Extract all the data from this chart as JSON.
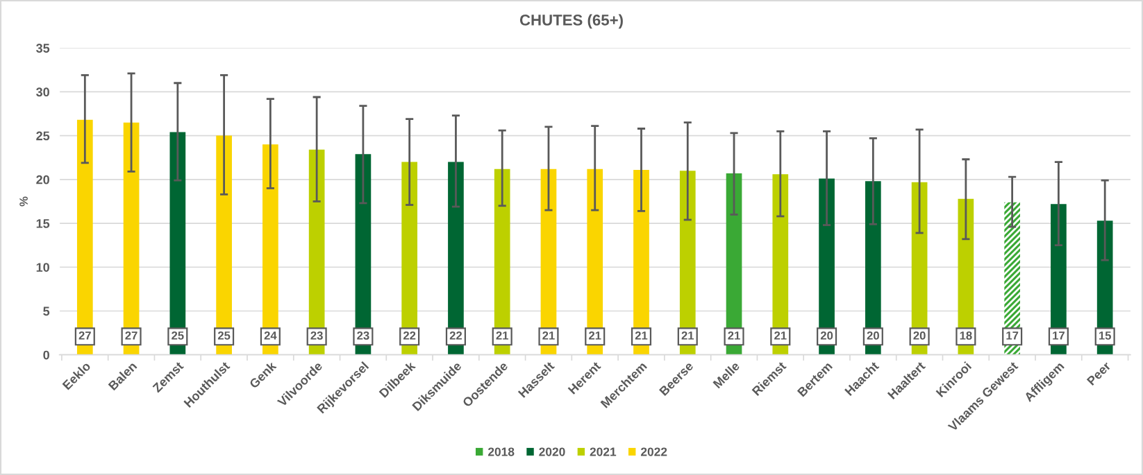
{
  "chart_data": {
    "type": "bar",
    "title": "CHUTES (65+)",
    "ylabel": "%",
    "categories": [
      "Eeklo",
      "Balen",
      "Zemst",
      "Houthulst",
      "Genk",
      "Vilvoorde",
      "Rijkevorsel",
      "Dilbeek",
      "Diksmuide",
      "Oostende",
      "Hasselt",
      "Herent",
      "Merchtem",
      "Beerse",
      "Melle",
      "Riemst",
      "Bertem",
      "Haacht",
      "Haaltert",
      "Kinrooi",
      "Vlaams Gewest",
      "Affligem",
      "Peer"
    ],
    "stacked": true,
    "series": [
      {
        "name": "2018",
        "color": "#3aa935",
        "values": [
          null,
          null,
          null,
          null,
          null,
          null,
          null,
          null,
          null,
          null,
          null,
          null,
          null,
          null,
          20.7,
          null,
          null,
          null,
          null,
          null,
          null,
          null,
          null
        ],
        "errors": [
          null,
          null,
          null,
          null,
          null,
          null,
          null,
          null,
          null,
          null,
          null,
          null,
          null,
          null,
          [
            16.0,
            25.3
          ],
          null,
          null,
          null,
          null,
          null,
          null,
          null,
          null
        ],
        "value_labels": [
          null,
          null,
          null,
          null,
          null,
          null,
          null,
          null,
          null,
          null,
          null,
          null,
          null,
          null,
          "21",
          null,
          null,
          null,
          null,
          null,
          null,
          null,
          null
        ]
      },
      {
        "name": "2020",
        "color": "#006633",
        "values": [
          null,
          null,
          25.4,
          null,
          null,
          null,
          22.9,
          null,
          22.0,
          null,
          null,
          null,
          null,
          null,
          null,
          null,
          20.1,
          19.8,
          null,
          null,
          null,
          17.2,
          15.3
        ],
        "errors": [
          null,
          null,
          [
            19.9,
            31.0
          ],
          null,
          null,
          null,
          [
            17.3,
            28.4
          ],
          null,
          [
            16.9,
            27.3
          ],
          null,
          null,
          null,
          null,
          null,
          null,
          null,
          [
            14.8,
            25.5
          ],
          [
            14.9,
            24.7
          ],
          null,
          null,
          null,
          [
            12.5,
            22.0
          ],
          [
            10.8,
            19.9
          ]
        ],
        "value_labels": [
          null,
          null,
          "25",
          null,
          null,
          null,
          "23",
          null,
          "22",
          null,
          null,
          null,
          null,
          null,
          null,
          null,
          "20",
          "20",
          null,
          null,
          null,
          "17",
          "15"
        ]
      },
      {
        "name": "2021",
        "color": "#bdd000",
        "values": [
          null,
          null,
          null,
          null,
          null,
          23.4,
          null,
          22.0,
          null,
          21.2,
          null,
          null,
          null,
          21.0,
          null,
          20.6,
          null,
          null,
          19.7,
          17.8,
          null,
          null,
          null
        ],
        "errors": [
          null,
          null,
          null,
          null,
          null,
          [
            17.5,
            29.4
          ],
          null,
          [
            17.1,
            26.9
          ],
          null,
          [
            17.0,
            25.6
          ],
          null,
          null,
          null,
          [
            15.4,
            26.5
          ],
          null,
          [
            15.8,
            25.5
          ],
          null,
          null,
          [
            13.9,
            25.7
          ],
          [
            13.2,
            22.3
          ],
          null,
          null,
          null
        ],
        "value_labels": [
          null,
          null,
          null,
          null,
          null,
          "23",
          null,
          "22",
          null,
          "21",
          null,
          null,
          null,
          "21",
          null,
          "21",
          null,
          null,
          "20",
          "18",
          null,
          null,
          null
        ]
      },
      {
        "name": "2022",
        "color": "#fad500",
        "values": [
          26.8,
          26.5,
          null,
          25.0,
          24.0,
          null,
          null,
          null,
          null,
          null,
          21.2,
          21.2,
          21.1,
          null,
          null,
          null,
          null,
          null,
          null,
          null,
          null,
          null,
          null
        ],
        "errors": [
          [
            21.9,
            31.9
          ],
          [
            20.9,
            32.1
          ],
          null,
          [
            18.3,
            31.9
          ],
          [
            19.0,
            29.2
          ],
          null,
          null,
          null,
          null,
          null,
          [
            16.5,
            26.0
          ],
          [
            16.5,
            26.1
          ],
          [
            16.4,
            25.8
          ],
          null,
          null,
          null,
          null,
          null,
          null,
          null,
          null,
          null,
          null
        ],
        "value_labels": [
          "27",
          "27",
          null,
          "25",
          "24",
          null,
          null,
          null,
          null,
          null,
          "21",
          "21",
          "21",
          null,
          null,
          null,
          null,
          null,
          null,
          null,
          null,
          null,
          null
        ]
      },
      {
        "color": "#3aa935",
        "values": [
          null,
          null,
          null,
          null,
          null,
          null,
          null,
          null,
          null,
          null,
          null,
          null,
          null,
          null,
          null,
          null,
          null,
          null,
          null,
          null,
          17.4,
          null,
          null
        ],
        "errors": [
          null,
          null,
          null,
          null,
          null,
          null,
          null,
          null,
          null,
          null,
          null,
          null,
          null,
          null,
          null,
          null,
          null,
          null,
          null,
          null,
          [
            14.6,
            20.3
          ],
          null,
          null
        ],
        "value_labels": [
          null,
          null,
          null,
          null,
          null,
          null,
          null,
          null,
          null,
          null,
          null,
          null,
          null,
          null,
          null,
          null,
          null,
          null,
          null,
          null,
          "17",
          null,
          null
        ]
      }
    ],
    "ylim": [
      0,
      35
    ],
    "yticks": [
      0,
      5,
      10,
      15,
      20,
      25,
      30,
      35
    ],
    "grid": "y",
    "legend": "bottom"
  }
}
